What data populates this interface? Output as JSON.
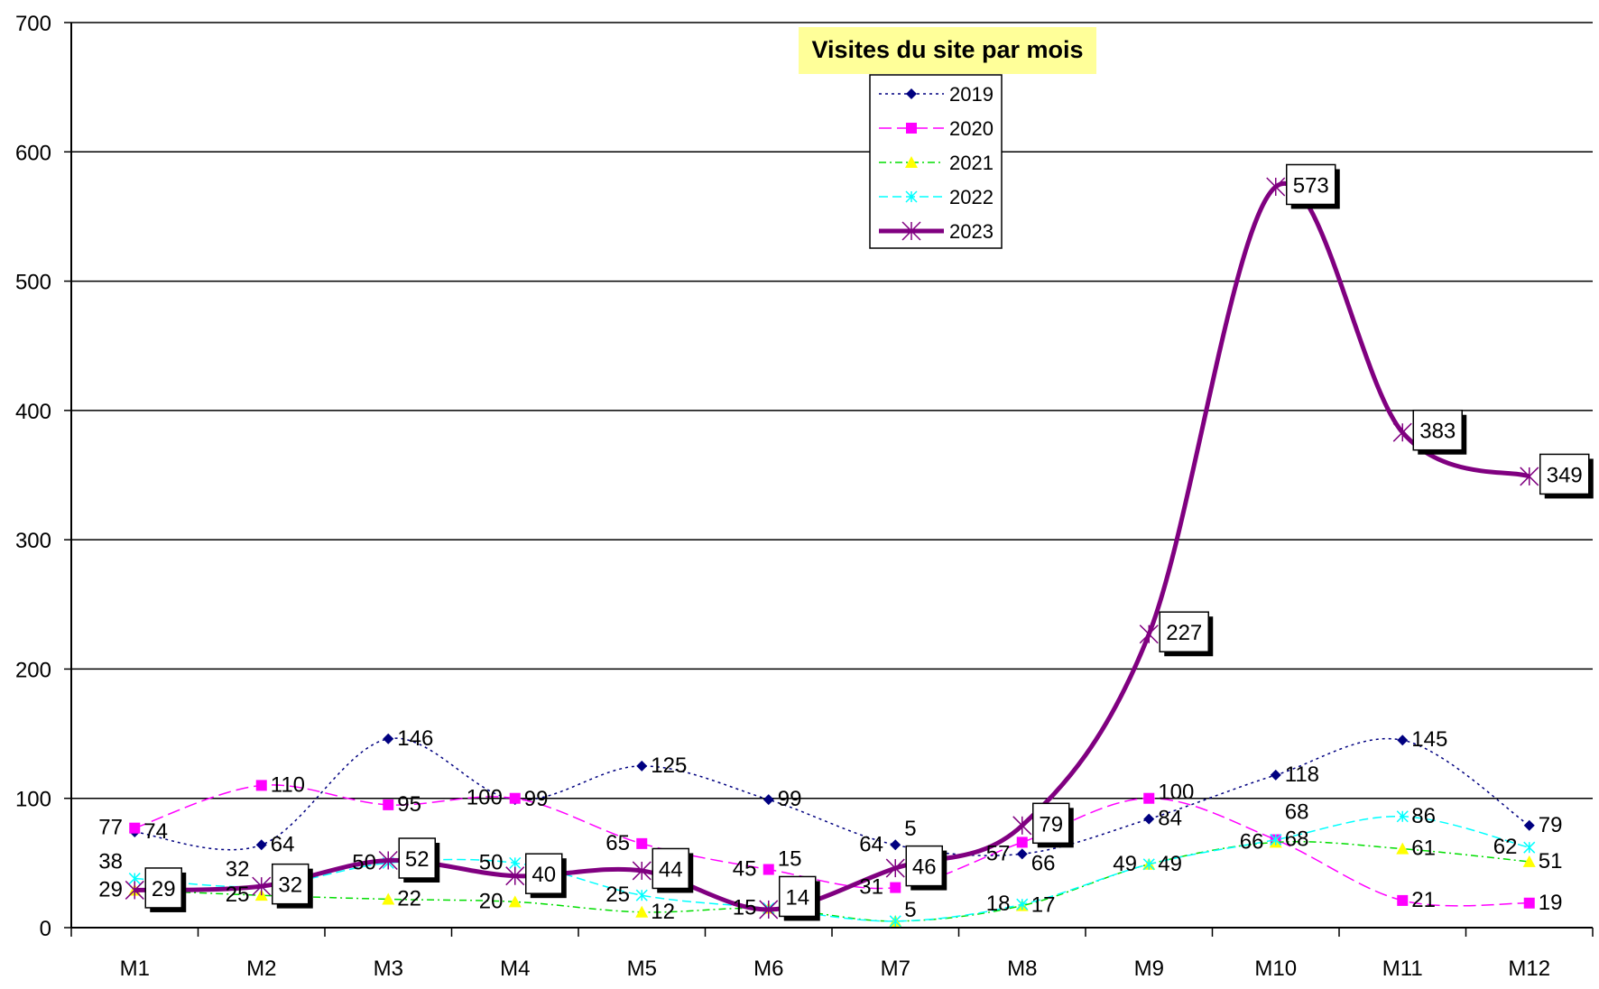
{
  "chart_data": {
    "type": "line",
    "title": "Visites du site par mois",
    "categories": [
      "M1",
      "M2",
      "M3",
      "M4",
      "M5",
      "M6",
      "M7",
      "M8",
      "M9",
      "M10",
      "M11",
      "M12"
    ],
    "ylim": [
      0,
      700
    ],
    "yticks": [
      0,
      100,
      200,
      300,
      400,
      500,
      600,
      700
    ],
    "grid": true,
    "legend_placement": "top-center",
    "series": [
      {
        "name": "2019",
        "color": "#000080",
        "marker": "diamond",
        "dash": "3,4",
        "width": 1.5,
        "values": [
          74,
          64,
          146,
          99,
          125,
          99,
          64,
          57,
          84,
          118,
          145,
          79
        ]
      },
      {
        "name": "2020",
        "color": "#FF00FF",
        "marker": "square",
        "dash": "14,6",
        "width": 1.5,
        "values": [
          77,
          110,
          95,
          100,
          65,
          45,
          31,
          66,
          100,
          68,
          21,
          19
        ]
      },
      {
        "name": "2021",
        "color": "#00DD00",
        "marker": "triangle",
        "dash": "8,4,2,4",
        "width": 1.5,
        "values": [
          29,
          25,
          22,
          20,
          12,
          15,
          5,
          17,
          49,
          66,
          61,
          51
        ]
      },
      {
        "name": "2022",
        "color": "#00FFFF",
        "marker": "x",
        "dash": "10,5",
        "width": 1.5,
        "values": [
          38,
          32,
          50,
          50,
          25,
          15,
          5,
          18,
          49,
          68,
          86,
          62
        ]
      },
      {
        "name": "2023",
        "color": "#800080",
        "marker": "asterisk",
        "dash": "",
        "width": 5,
        "values": [
          29,
          32,
          52,
          40,
          44,
          14,
          46,
          79,
          227,
          573,
          383,
          349
        ],
        "boxed_labels": true
      }
    ]
  }
}
